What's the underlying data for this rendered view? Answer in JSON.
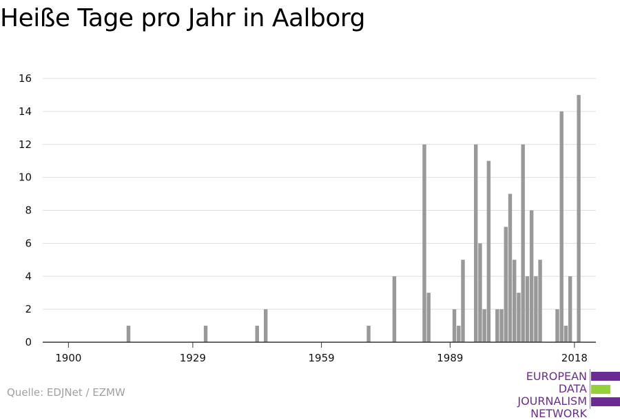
{
  "title": "Heiße Tage pro Jahr in Aalborg",
  "source": "Quelle: EDJNet / EZMW",
  "logo": {
    "lines": [
      "EUROPEAN",
      "DATA JOURNALISM",
      "NETWORK"
    ],
    "colors": {
      "text": "#6b2c91",
      "purple": "#6b2c91",
      "green": "#93d03a"
    }
  },
  "colors": {
    "bar": "#999999",
    "grid": "#dddddd",
    "axis": "#333333"
  },
  "chart_data": {
    "type": "bar",
    "title": "Heiße Tage pro Jahr in Aalborg",
    "xlabel": "",
    "ylabel": "",
    "xlim": [
      1894,
      2023
    ],
    "ylim": [
      0,
      16
    ],
    "x_ticks": [
      1900,
      1929,
      1959,
      1989,
      2018
    ],
    "y_ticks": [
      0,
      2,
      4,
      6,
      8,
      10,
      12,
      14,
      16
    ],
    "grid": true,
    "x": [
      1914,
      1932,
      1944,
      1946,
      1970,
      1976,
      1983,
      1984,
      1990,
      1991,
      1992,
      1995,
      1996,
      1997,
      1998,
      2000,
      2001,
      2002,
      2003,
      2004,
      2005,
      2006,
      2007,
      2008,
      2009,
      2010,
      2014,
      2015,
      2016,
      2017,
      2019
    ],
    "values": [
      1,
      1,
      1,
      2,
      1,
      4,
      12,
      3,
      2,
      1,
      5,
      12,
      6,
      2,
      11,
      2,
      2,
      7,
      9,
      5,
      3,
      12,
      4,
      8,
      4,
      5,
      2,
      14,
      1,
      4,
      15
    ]
  }
}
